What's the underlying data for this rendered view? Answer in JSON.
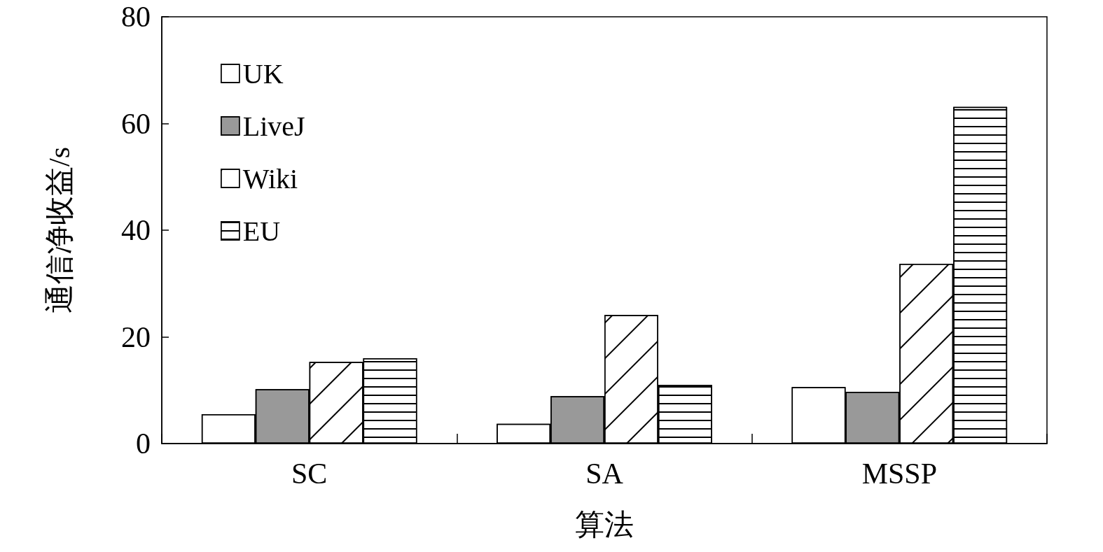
{
  "chart_data": {
    "type": "bar",
    "xlabel": "算法",
    "ylabel": "通信净收益/s",
    "categories": [
      "SC",
      "SA",
      "MSSP"
    ],
    "series": [
      {
        "name": "UK",
        "color": "#ffffff",
        "values": [
          5.5,
          3.7,
          10.6
        ]
      },
      {
        "name": "LiveJ",
        "color": "#999999",
        "values": [
          10.2,
          8.9,
          9.7
        ]
      },
      {
        "name": "Wiki",
        "color": "#ffffff",
        "values": [
          15.3,
          24.1,
          33.7
        ]
      },
      {
        "name": "EU",
        "color": "#ffffff",
        "values": [
          16.0,
          11.0,
          63.1
        ]
      }
    ],
    "ylim": [
      0,
      80
    ],
    "yticks": [
      0,
      20,
      40,
      60,
      80
    ],
    "grid": false,
    "legend": "top left"
  }
}
